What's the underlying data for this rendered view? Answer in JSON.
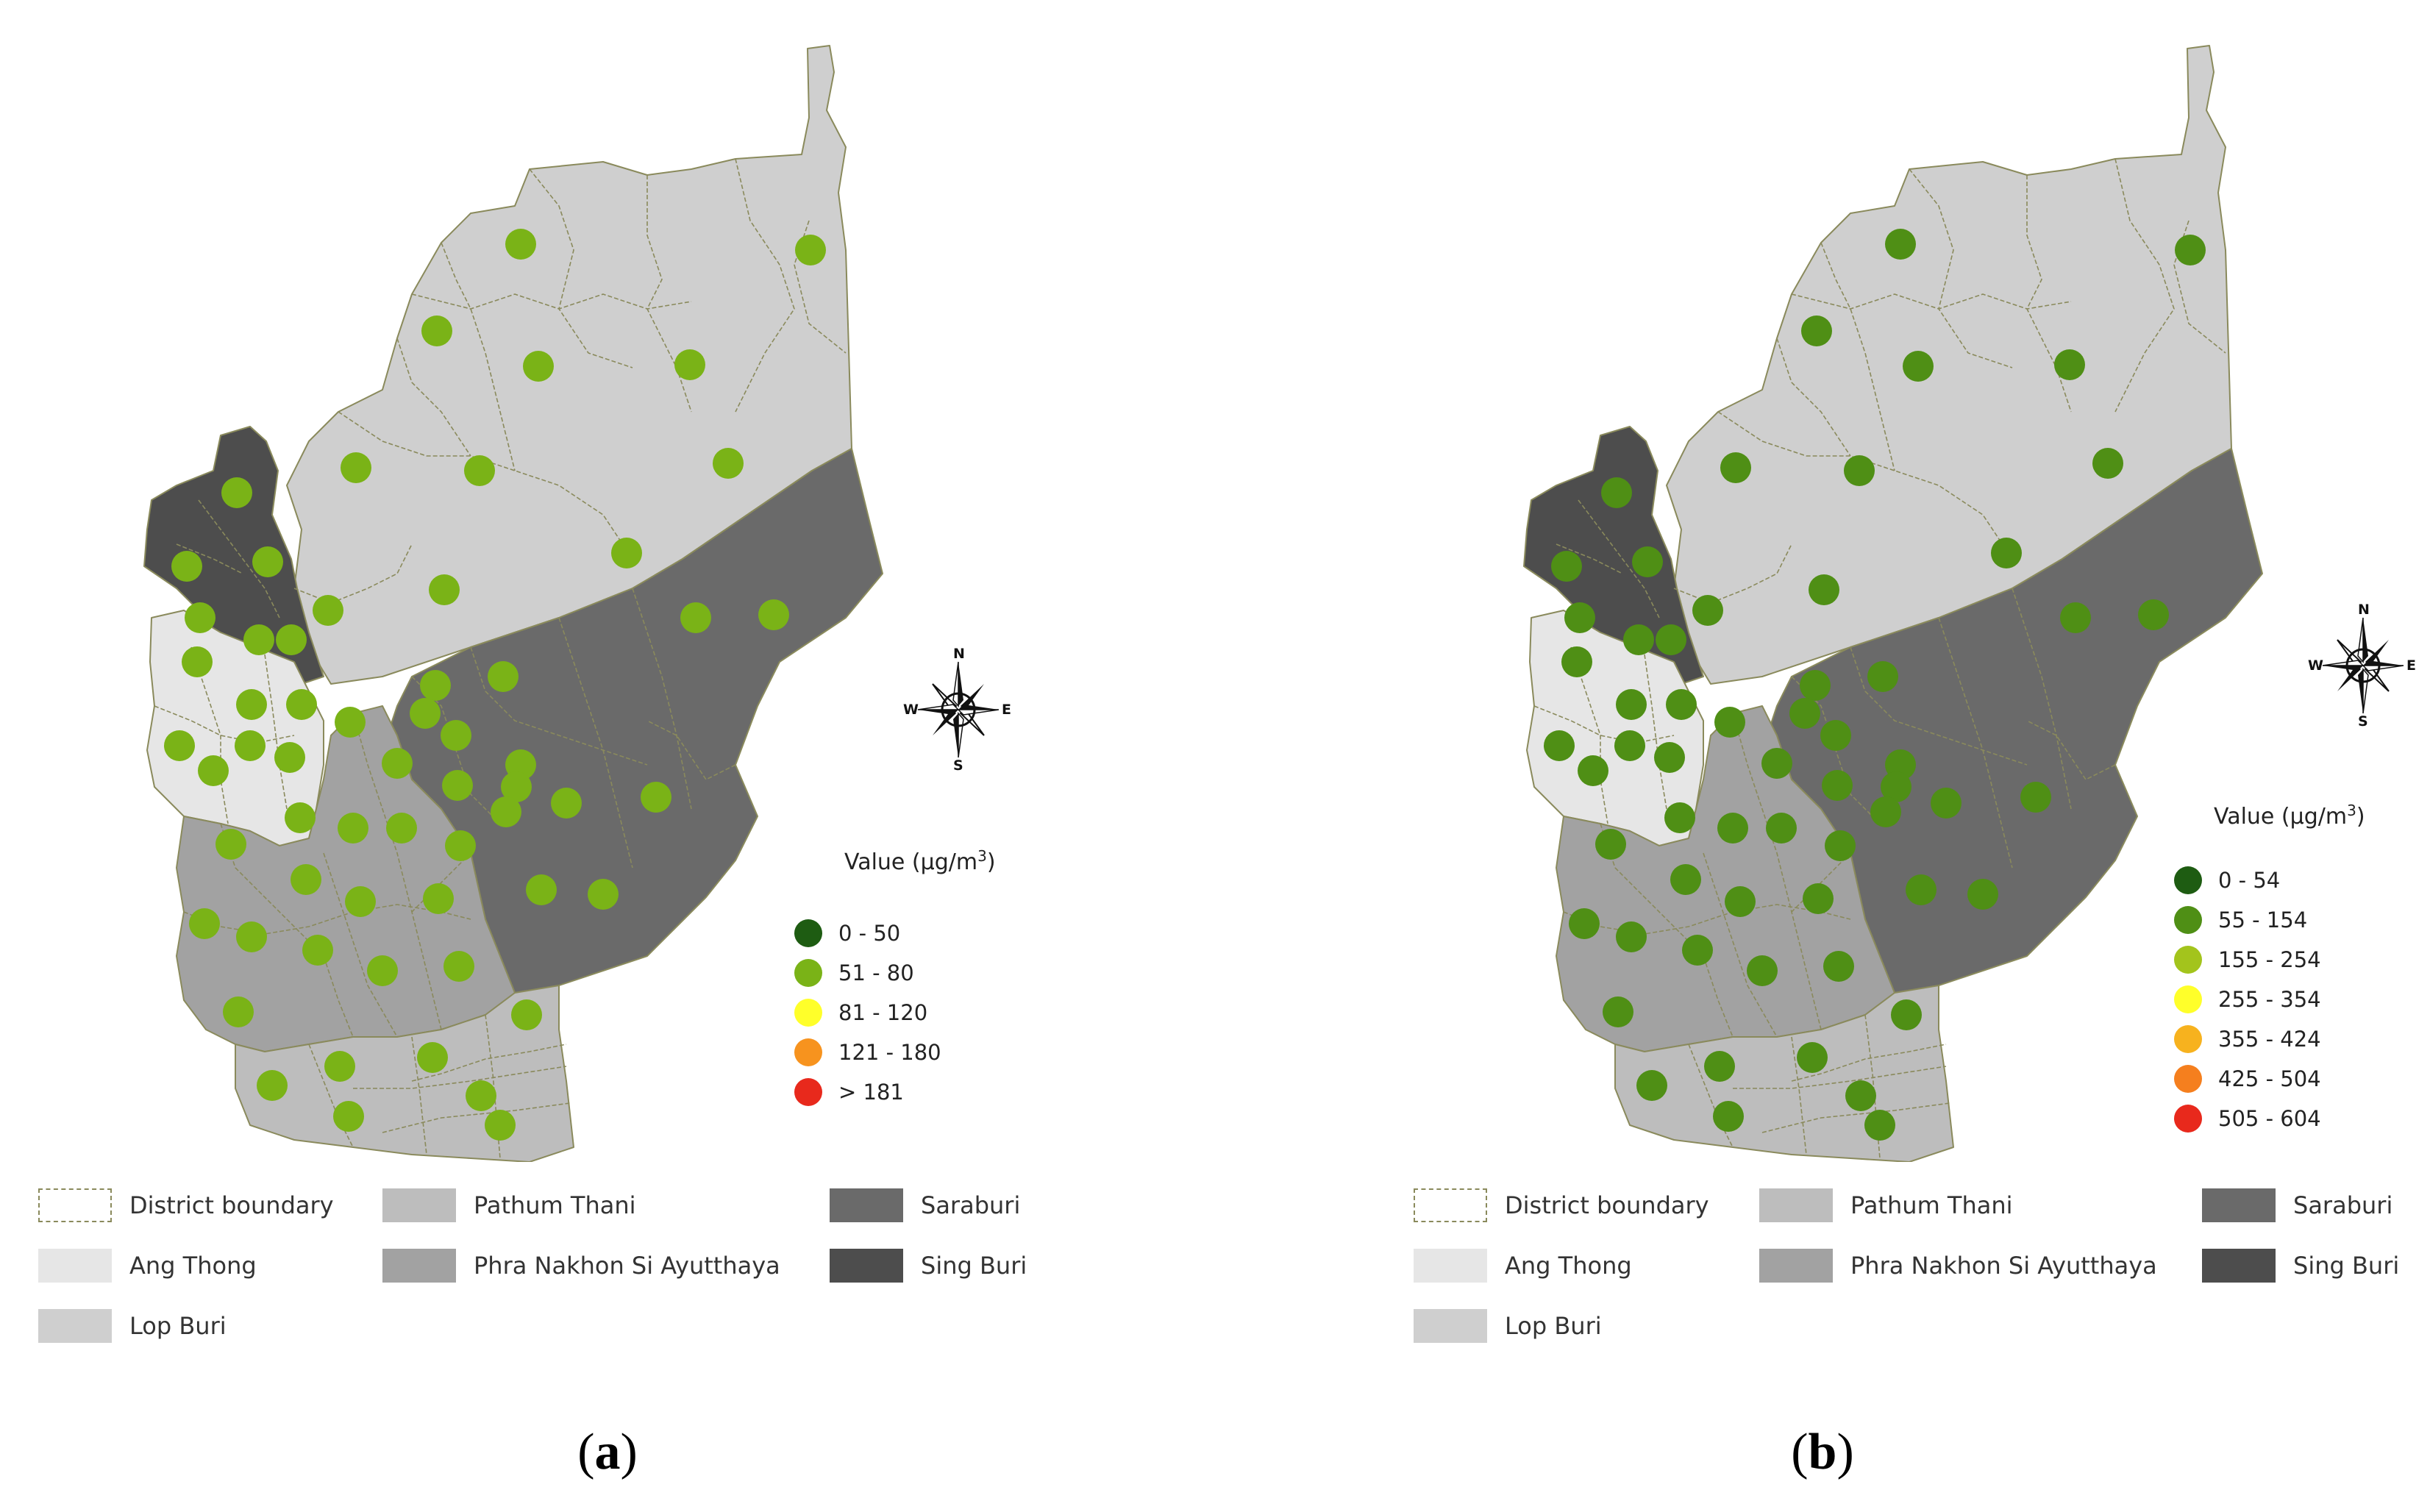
{
  "panels": [
    {
      "id": "a",
      "caption_letter": "a",
      "value_title": "Value (μg/m",
      "value_title_sup": "3",
      "value_title_close": ")",
      "classes": [
        {
          "label": "0 - 50",
          "color": "#1e5c12"
        },
        {
          "label": "51 - 80",
          "color": "#7ab317"
        },
        {
          "label": "81 - 120",
          "color": "#ffff2a"
        },
        {
          "label": "121 - 180",
          "color": "#f7931e"
        },
        {
          "label": "> 181",
          "color": "#e8291c"
        }
      ],
      "dot_color": "#7ab317"
    },
    {
      "id": "b",
      "caption_letter": "b",
      "value_title": "Value (μg/m",
      "value_title_sup": "3",
      "value_title_close": ")",
      "classes": [
        {
          "label": "0 - 54",
          "color": "#1e5c12"
        },
        {
          "label": "55 - 154",
          "color": "#4f8f15"
        },
        {
          "label": "155 - 254",
          "color": "#a3c41c"
        },
        {
          "label": "255 - 354",
          "color": "#ffff2a"
        },
        {
          "label": "355 - 424",
          "color": "#f7b21e"
        },
        {
          "label": "425 - 504",
          "color": "#f57f1e"
        },
        {
          "label": "505 - 604",
          "color": "#e8291c"
        }
      ],
      "dot_color": "#4f8f15"
    }
  ],
  "compass": {
    "n": "N",
    "s": "S",
    "w": "W",
    "e": "E"
  },
  "legend": {
    "district_boundary": "District boundary",
    "ang_thong": "Ang Thong",
    "lop_buri": "Lop Buri",
    "pathum_thani": "Pathum Thani",
    "phra_nakhon": "Phra Nakhon Si Ayutthaya",
    "saraburi": "Saraburi",
    "sing_buri": "Sing Buri"
  },
  "province_colors": {
    "lop_buri": "#cfcfcf",
    "ang_thong": "#e6e6e6",
    "sing_buri": "#4d4d4d",
    "saraburi": "#6a6a6a",
    "phra_nakhon": "#a2a2a2",
    "pathum_thani": "#bdbdbd",
    "boundary": "#8a8a5c"
  }
}
